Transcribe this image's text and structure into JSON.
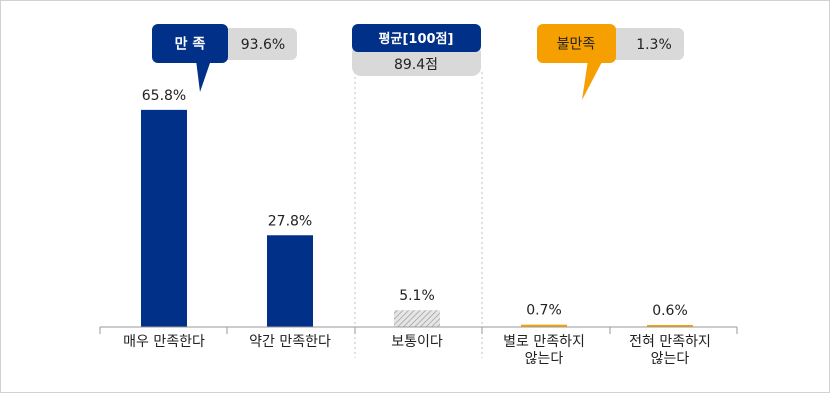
{
  "chart_data": {
    "type": "bar",
    "categories": [
      "매우 만족한다",
      "약간 만족한다",
      "보통이다",
      "별로 만족하지\n않는다",
      "전혀 만족하지\n않는다"
    ],
    "values": [
      65.8,
      27.8,
      5.1,
      0.7,
      0.6
    ],
    "value_labels": [
      "65.8%",
      "27.8%",
      "5.1%",
      "0.7%",
      "0.6%"
    ],
    "ylim": [
      0,
      100
    ],
    "colors": [
      "#003087",
      "#003087",
      "hatch-gray",
      "#f5a000",
      "#f5a000"
    ],
    "grid": false
  },
  "callouts": {
    "satisfied": {
      "label": "만 족",
      "value": "93.6%",
      "color": "#003087"
    },
    "average": {
      "label": "평균[100점]",
      "value": "89.4점",
      "color": "#003087"
    },
    "dissatisfied": {
      "label": "불만족",
      "value": "1.3%",
      "color": "#f5a000"
    }
  }
}
